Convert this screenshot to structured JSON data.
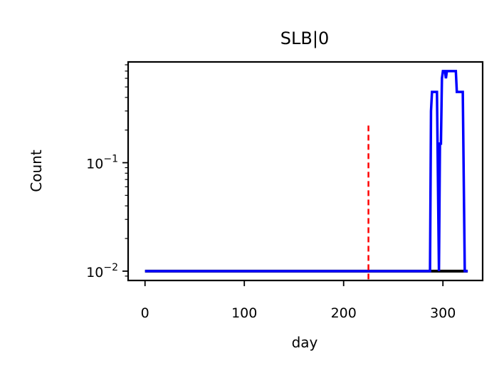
{
  "chart_data": {
    "type": "line",
    "title": "SLB|0",
    "xlabel": "day",
    "ylabel": "Count",
    "xlim": [
      -17,
      340
    ],
    "ylim": [
      0.0082,
      0.85
    ],
    "yscale": "log",
    "grid": false,
    "x_ticks": [
      {
        "value": 0,
        "label": "0"
      },
      {
        "value": 100,
        "label": "100"
      },
      {
        "value": 200,
        "label": "200"
      },
      {
        "value": 300,
        "label": "300"
      }
    ],
    "y_ticks": [
      {
        "value": 0.01,
        "base": "10",
        "exp": "−2"
      },
      {
        "value": 0.1,
        "base": "10",
        "exp": "−1"
      }
    ],
    "vline": {
      "x": 225,
      "y_top": 0.22,
      "color": "#ff0000",
      "style": "dashed"
    },
    "series": [
      {
        "color": "#000000",
        "x": [
          0,
          325
        ],
        "y": [
          0.01,
          0.01
        ]
      },
      {
        "color": "#0000ff",
        "x": [
          0,
          287,
          288,
          289,
          290,
          292,
          294,
          296,
          297,
          298,
          299,
          300,
          302,
          303,
          304,
          305,
          306,
          308,
          310,
          313,
          314,
          316,
          318,
          320,
          322,
          323,
          325
        ],
        "y": [
          0.01,
          0.01,
          0.3,
          0.45,
          0.45,
          0.45,
          0.45,
          0.01,
          0.15,
          0.15,
          0.6,
          0.7,
          0.7,
          0.6,
          0.7,
          0.7,
          0.7,
          0.7,
          0.7,
          0.7,
          0.45,
          0.45,
          0.45,
          0.45,
          0.01,
          0.01,
          0.01
        ]
      }
    ]
  }
}
